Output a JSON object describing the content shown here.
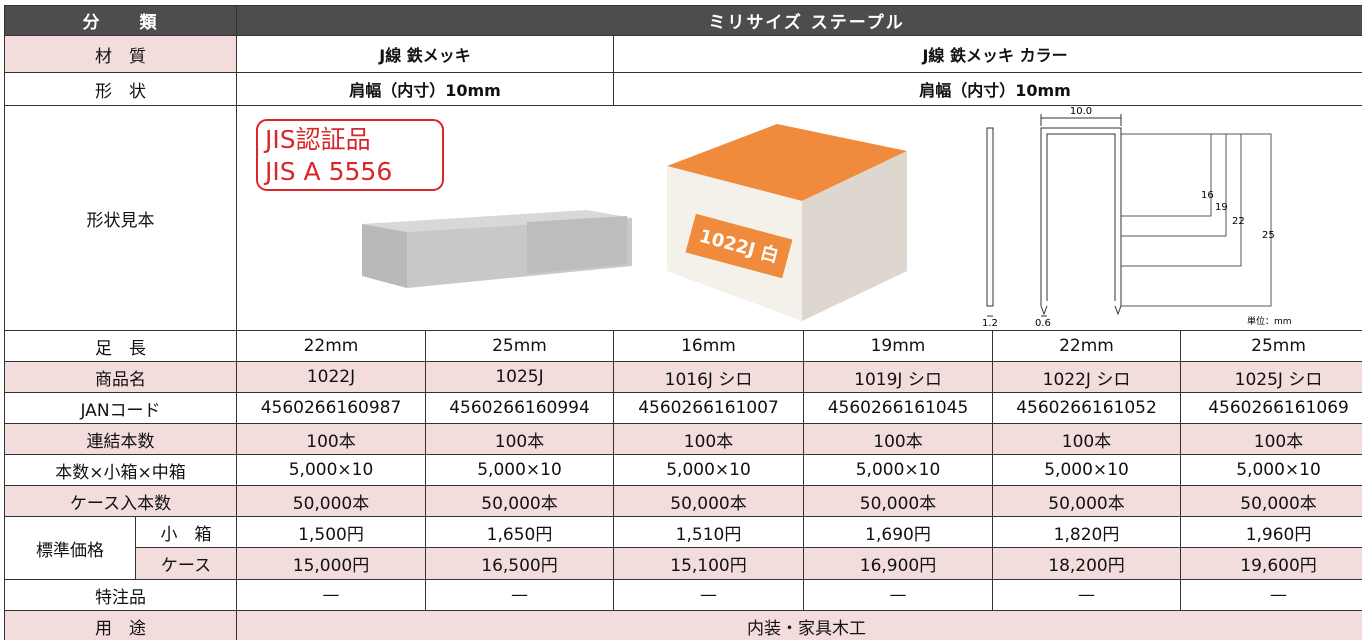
{
  "header": {
    "category_label": "分　　類",
    "product_line": "ミリサイズ ステープル"
  },
  "material": {
    "label": "材　質",
    "groups": [
      "J線 鉄メッキ",
      "J線 鉄メッキ カラー"
    ]
  },
  "shape": {
    "label": "形　状",
    "groups": [
      "肩幅（内寸）10mm",
      "肩幅（内寸）10mm"
    ]
  },
  "sample": {
    "label": "形状見本",
    "badge": [
      "JIS認証品",
      "JIS A 5556"
    ],
    "box_label": "1022J 白",
    "diagram": {
      "width": "10.0",
      "lengths": [
        "16",
        "19",
        "22",
        "25"
      ],
      "wire_thickness": "1.2",
      "wire_width": "0.6",
      "unit": "単位：mm"
    }
  },
  "rows": [
    {
      "label": "足　長",
      "values": [
        "22mm",
        "25mm",
        "16mm",
        "19mm",
        "22mm",
        "25mm"
      ]
    },
    {
      "label": "商品名",
      "values": [
        "1022J",
        "1025J",
        "1016J シロ",
        "1019J シロ",
        "1022J シロ",
        "1025J シロ"
      ]
    },
    {
      "label": "JANコード",
      "values": [
        "4560266160987",
        "4560266160994",
        "4560266161007",
        "4560266161045",
        "4560266161052",
        "4560266161069"
      ]
    },
    {
      "label": "連結本数",
      "values": [
        "100本",
        "100本",
        "100本",
        "100本",
        "100本",
        "100本"
      ]
    },
    {
      "label": "本数×小箱×中箱",
      "values": [
        "5,000×10",
        "5,000×10",
        "5,000×10",
        "5,000×10",
        "5,000×10",
        "5,000×10"
      ]
    },
    {
      "label": "ケース入本数",
      "values": [
        "50,000本",
        "50,000本",
        "50,000本",
        "50,000本",
        "50,000本",
        "50,000本"
      ]
    }
  ],
  "price": {
    "label": "標準価格",
    "rows": [
      {
        "label": "小　箱",
        "values": [
          "1,500円",
          "1,650円",
          "1,510円",
          "1,690円",
          "1,820円",
          "1,960円"
        ]
      },
      {
        "label": "ケース",
        "values": [
          "15,000円",
          "16,500円",
          "15,100円",
          "16,900円",
          "18,200円",
          "19,600円"
        ]
      }
    ]
  },
  "special": {
    "label": "特注品",
    "values": [
      "—",
      "—",
      "—",
      "—",
      "—",
      "—"
    ]
  },
  "usage": {
    "label": "用　途",
    "value": "内装・家具木工"
  }
}
